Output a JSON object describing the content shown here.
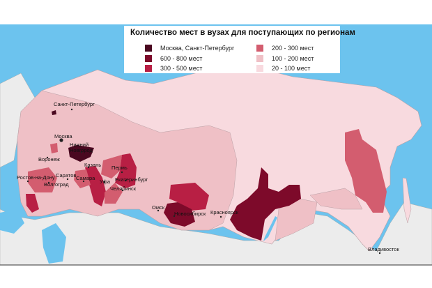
{
  "legend": {
    "title": "Количество мест в вузах для поступающих по регионам",
    "items": [
      {
        "label": "Москва, Санкт-Петербург",
        "color": "#4a0820"
      },
      {
        "label": "600 - 800 мест",
        "color": "#7d0a2a"
      },
      {
        "label": "300 - 500 мест",
        "color": "#b81f44"
      },
      {
        "label": "200 - 300 мест",
        "color": "#d35d6f"
      },
      {
        "label": "100 - 200 мест",
        "color": "#efc0c6"
      },
      {
        "label": "20 - 100 мест",
        "color": "#f8dadf"
      }
    ]
  },
  "colors": {
    "sea": "#6cc3ee",
    "foreign_land": "#ececec",
    "border": "#9a8a8e"
  },
  "cities": [
    "Санкт-Петербург",
    "Москва",
    "Нижний Новгород",
    "Воронеж",
    "Казань",
    "Пермь",
    "Саратов",
    "Самара",
    "Ростов-на-Дону",
    "Волгоград",
    "Уфа",
    "Екатеринбург",
    "Челябинск",
    "Омск",
    "Новосибирск",
    "Красноярск",
    "Владивосток"
  ]
}
